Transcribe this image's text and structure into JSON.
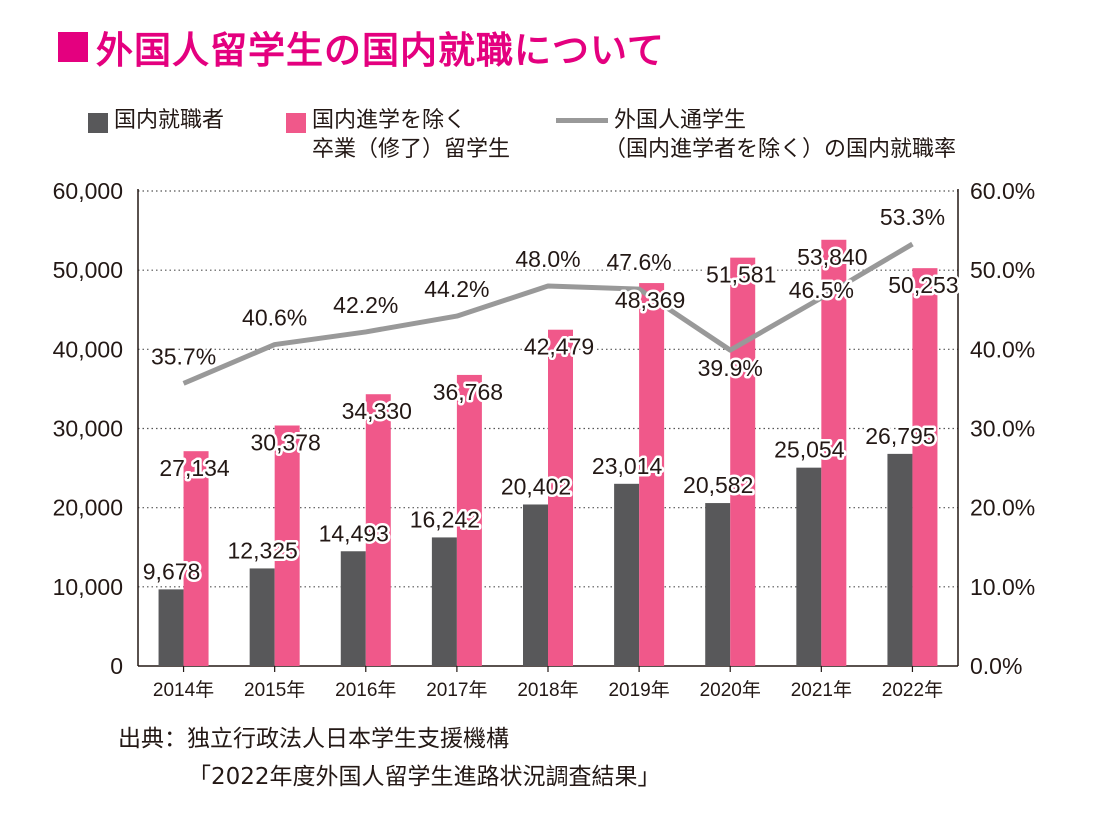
{
  "title": "外国人留学生の国内就職について",
  "legend": {
    "dark": "国内就職者",
    "pink_line1": "国内進学を除く",
    "pink_line2": "卒業（修了）留学生",
    "line_line1": "外国人通学生",
    "line_line2": "（国内進学者を除く）の国内就職率"
  },
  "source": {
    "line1": "出典：独立行政法人日本学生支援機構",
    "line2": "「2022年度外国人留学生進路状況調査結果」"
  },
  "colors": {
    "dark": "#58585a",
    "pink": "#f0588a",
    "line": "#999999",
    "title": "#e4007f"
  },
  "chart_data": {
    "type": "bar",
    "categories": [
      "2014年",
      "2015年",
      "2016年",
      "2017年",
      "2018年",
      "2019年",
      "2020年",
      "2021年",
      "2022年"
    ],
    "series": [
      {
        "name": "国内就職者",
        "type": "bar",
        "values": [
          9678,
          12325,
          14493,
          16242,
          20402,
          23014,
          20582,
          25054,
          26795
        ],
        "labels": [
          "9,678",
          "12,325",
          "14,493",
          "16,242",
          "20,402",
          "23,014",
          "20,582",
          "25,054",
          "26,795"
        ]
      },
      {
        "name": "国内進学を除く卒業（修了）留学生",
        "type": "bar",
        "values": [
          27134,
          30378,
          34330,
          36768,
          42479,
          48369,
          51581,
          53840,
          50253
        ],
        "labels": [
          "27,134",
          "30,378",
          "34,330",
          "36,768",
          "42,479",
          "48,369",
          "51,581",
          "53,840",
          "50,253"
        ]
      },
      {
        "name": "外国人通学生（国内進学者を除く）の国内就職率",
        "type": "line",
        "axis": "right",
        "values": [
          35.7,
          40.6,
          42.2,
          44.2,
          48.0,
          47.6,
          39.9,
          46.5,
          53.3
        ],
        "labels": [
          "35.7%",
          "40.6%",
          "42.2%",
          "44.2%",
          "48.0%",
          "47.6%",
          "39.9%",
          "46.5%",
          "53.3%"
        ]
      }
    ],
    "y_left": {
      "min": 0,
      "max": 60000,
      "ticks": [
        0,
        10000,
        20000,
        30000,
        40000,
        50000,
        60000
      ],
      "tick_labels": [
        "0",
        "10,000",
        "20,000",
        "30,000",
        "40,000",
        "50,000",
        "60,000"
      ]
    },
    "y_right": {
      "min": 0,
      "max": 60,
      "ticks": [
        0,
        10,
        20,
        30,
        40,
        50,
        60
      ],
      "tick_labels": [
        "0.0%",
        "10.0%",
        "20.0%",
        "30.0%",
        "40.0%",
        "50.0%",
        "60.0%"
      ]
    },
    "grid": "horizontal-dotted",
    "legend_position": "top"
  }
}
